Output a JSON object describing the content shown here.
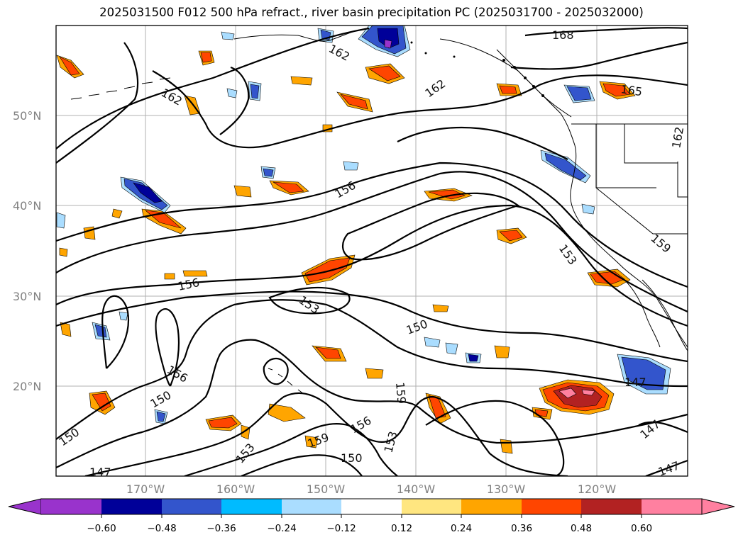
{
  "title": "2025031500 F012 500 hPa refract., river basin precipitation PC (2025031700 - 2025032000)",
  "latitude_labels": [
    "50°N",
    "40°N",
    "30°N",
    "20°N"
  ],
  "longitude_labels": [
    "170°W",
    "160°W",
    "150°W",
    "140°W",
    "130°W",
    "120°W"
  ],
  "contour_labels": [
    "168",
    "162",
    "162",
    "162",
    "165",
    "162",
    "156",
    "159",
    "153",
    "156",
    "153",
    "150",
    "156",
    "150",
    "150",
    "147",
    "159",
    "159",
    "156",
    "150",
    "153",
    "153",
    "147",
    "147",
    "147"
  ],
  "colorbar": {
    "ticks": [
      "−0.60",
      "−0.48",
      "−0.36",
      "−0.24",
      "−0.12",
      "0.12",
      "0.24",
      "0.36",
      "0.48",
      "0.60"
    ],
    "colors": [
      "#9933cc",
      "#000099",
      "#3355cc",
      "#00bbff",
      "#aaddff",
      "#ffffff",
      "#ffe680",
      "#ffa500",
      "#ff4500",
      "#b22222",
      "#ff80a0"
    ],
    "extend": "both"
  },
  "palette": {
    "contour": "#000000",
    "grid": "#b0b0b0",
    "coast": "#000000"
  }
}
